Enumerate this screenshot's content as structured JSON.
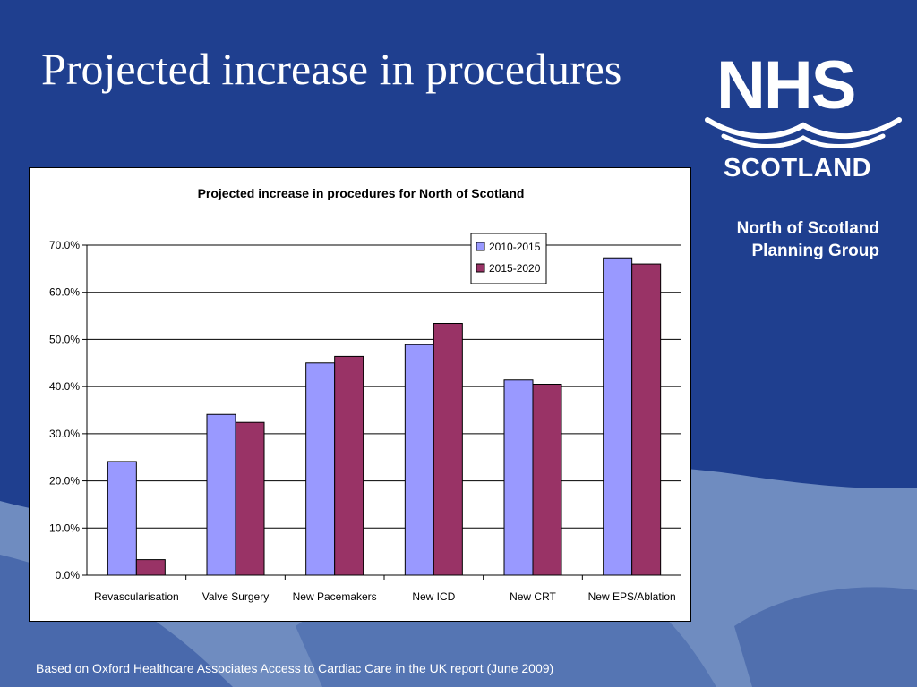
{
  "slide": {
    "title": "Projected increase in procedures",
    "logo": {
      "line1": "NHS",
      "line2": "SCOTLAND"
    },
    "group_name": [
      "North of Scotland",
      "Planning Group"
    ],
    "footnote": "Based on Oxford Healthcare Associates Access to Cardiac Care in the UK report (June 2009)"
  },
  "colors": {
    "background": "#1f3f8f",
    "wave": "#6f8cc0",
    "series_1": "#9999ff",
    "series_2": "#993366"
  },
  "chart_data": {
    "type": "bar",
    "title": "Projected increase in procedures for North of Scotland",
    "xlabel": "",
    "ylabel": "",
    "categories": [
      "Revascularisation",
      "Valve Surgery",
      "New  Pacemakers",
      "New  ICD",
      "New  CRT",
      "New  EPS/Ablation"
    ],
    "series": [
      {
        "name": "2010-2015",
        "values": [
          24.1,
          34.1,
          45.0,
          48.9,
          41.4,
          67.3
        ]
      },
      {
        "name": "2015-2020",
        "values": [
          3.3,
          32.4,
          46.4,
          53.4,
          40.5,
          66.0
        ]
      }
    ],
    "ylim": [
      0,
      70
    ],
    "y_ticks": [
      "0.0%",
      "10.0%",
      "20.0%",
      "30.0%",
      "40.0%",
      "50.0%",
      "60.0%",
      "70.0%"
    ],
    "grid": true,
    "legend_position": "top-right"
  }
}
